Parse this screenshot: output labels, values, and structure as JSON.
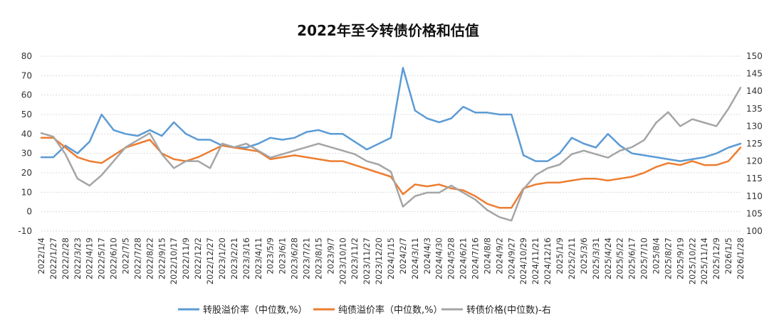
{
  "chart_data": {
    "type": "line",
    "title": "2022年至今转债价格和估值",
    "x_ticks": [
      "2022/1/4",
      "2022/1/27",
      "2022/2/28",
      "2022/3/23",
      "2022/4/19",
      "2022/5/17",
      "2022/6/10",
      "2022/7/5",
      "2022/7/28",
      "2022/8/22",
      "2022/9/15",
      "2022/10/17",
      "2022/11/9",
      "2022/12/2",
      "2022/12/27",
      "2023/1/20",
      "2023/2/21",
      "2023/3/16",
      "2023/4/11",
      "2023/5/9",
      "2023/6/1",
      "2023/6/28",
      "2023/7/21",
      "2023/8/15",
      "2023/9/7",
      "2023/10/10",
      "2023/11/2",
      "2023/11/27",
      "2023/12/20",
      "2024/1/15",
      "2024/2/7",
      "2024/3/11",
      "2024/4/3",
      "2024/4/30",
      "2024/5/28",
      "2024/6/21",
      "2024/7/16",
      "2024/8/8",
      "2024/9/2",
      "2024/9/27",
      "2024/10/29",
      "2024/11/21",
      "2024/12/16",
      "2025/1/9",
      "2025/2/11",
      "2025/3/6",
      "2025/3/31",
      "2025/4/24",
      "2025/5/22",
      "2025/6/17",
      "2025/7/10",
      "2025/8/4",
      "2025/8/27",
      "2025/9/19",
      "2025/10/22",
      "2025/11/14",
      "2025/12/9",
      "2026/1/5",
      "2026/1/28"
    ],
    "y_left": {
      "min": -10,
      "max": 80,
      "ticks": [
        -10,
        0,
        10,
        20,
        30,
        40,
        50,
        60,
        70,
        80
      ]
    },
    "y_right": {
      "min": 100,
      "max": 150,
      "ticks": [
        100,
        105,
        110,
        115,
        120,
        125,
        130,
        135,
        140,
        145,
        150
      ]
    },
    "grid": true,
    "legend_position": "bottom",
    "series": [
      {
        "name": "转股溢价率（中位数,%）",
        "axis": "left",
        "color": "#5b9bd5",
        "values": [
          28,
          28,
          34,
          30,
          36,
          50,
          42,
          40,
          39,
          42,
          39,
          46,
          40,
          37,
          37,
          34,
          33,
          33,
          35,
          38,
          37,
          38,
          41,
          42,
          40,
          40,
          36,
          32,
          35,
          38,
          74,
          52,
          48,
          46,
          48,
          54,
          51,
          51,
          50,
          50,
          29,
          26,
          26,
          30,
          38,
          35,
          33,
          40,
          34,
          30,
          29,
          28,
          27,
          26,
          27,
          28,
          30,
          33,
          35
        ]
      },
      {
        "name": "纯债溢价率（中位数,%）",
        "axis": "left",
        "color": "#ed7d31",
        "values": [
          38,
          38,
          33,
          28,
          26,
          25,
          29,
          33,
          35,
          37,
          30,
          27,
          26,
          28,
          31,
          34,
          33,
          32,
          31,
          27,
          28,
          29,
          28,
          27,
          26,
          26,
          24,
          22,
          20,
          18,
          9,
          14,
          13,
          14,
          12,
          11,
          8,
          4,
          2,
          2,
          12,
          14,
          15,
          15,
          16,
          17,
          17,
          16,
          17,
          18,
          20,
          23,
          25,
          24,
          26,
          24,
          24,
          26,
          33
        ]
      },
      {
        "name": "转债价格(中位数)-右",
        "axis": "right",
        "color": "#a5a5a5",
        "values": [
          128,
          127,
          122,
          115,
          113,
          116,
          120,
          124,
          126,
          128,
          122,
          118,
          120,
          120,
          118,
          125,
          124,
          125,
          123,
          121,
          122,
          123,
          124,
          125,
          124,
          123,
          122,
          120,
          119,
          117,
          107,
          110,
          111,
          111,
          113,
          111,
          109,
          106,
          104,
          103,
          112,
          116,
          118,
          119,
          122,
          123,
          122,
          121,
          123,
          124,
          126,
          131,
          134,
          130,
          132,
          131,
          130,
          135,
          141
        ]
      }
    ]
  }
}
